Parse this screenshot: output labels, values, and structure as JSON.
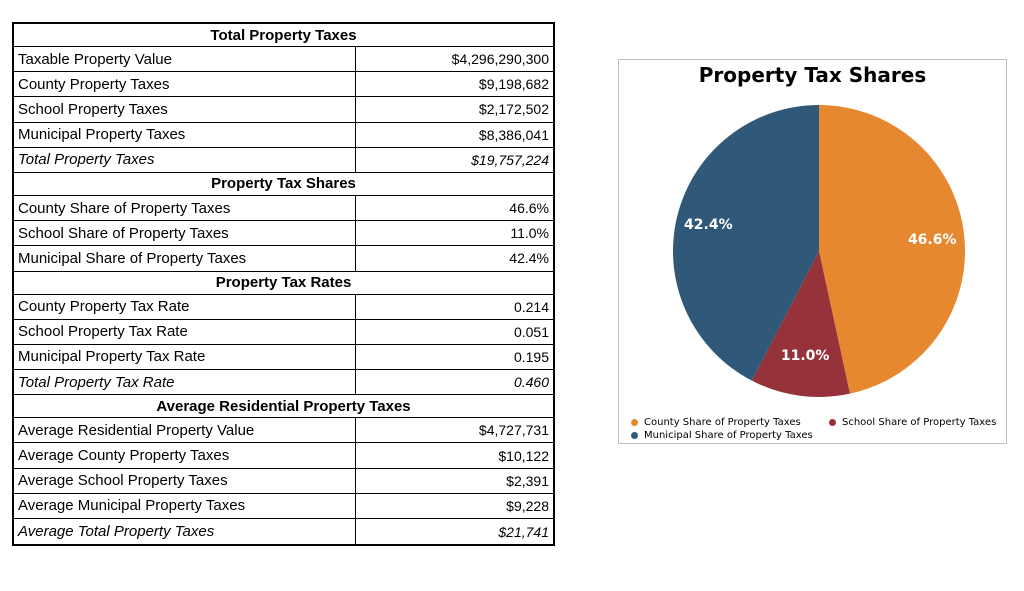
{
  "table": {
    "sections": [
      {
        "title": "Total Property Taxes",
        "rows": [
          {
            "label": "Taxable Property Value",
            "value": "$4,296,290,300",
            "italic": false
          },
          {
            "label": "County Property Taxes",
            "value": "$9,198,682",
            "italic": false
          },
          {
            "label": "School Property Taxes",
            "value": "$2,172,502",
            "italic": false
          },
          {
            "label": "Municipal Property Taxes",
            "value": "$8,386,041",
            "italic": false
          },
          {
            "label": "Total Property Taxes",
            "value": "$19,757,224",
            "italic": true
          }
        ]
      },
      {
        "title": "Property Tax Shares",
        "rows": [
          {
            "label": "County Share of Property Taxes",
            "value": "46.6%",
            "italic": false
          },
          {
            "label": "School Share of Property Taxes",
            "value": "11.0%",
            "italic": false
          },
          {
            "label": "Municipal Share of Property Taxes",
            "value": "42.4%",
            "italic": false
          }
        ]
      },
      {
        "title": "Property Tax Rates",
        "rows": [
          {
            "label": "County Property Tax Rate",
            "value": "0.214",
            "italic": false
          },
          {
            "label": "School Property Tax Rate",
            "value": "0.051",
            "italic": false
          },
          {
            "label": "Municipal Property Tax Rate",
            "value": "0.195",
            "italic": false
          },
          {
            "label": "Total Property Tax Rate",
            "value": "0.460",
            "italic": true
          }
        ]
      },
      {
        "title": "Average Residential Property Taxes",
        "rows": [
          {
            "label": "Average Residential Property Value",
            "value": "$4,727,731",
            "italic": false
          },
          {
            "label": "Average County Property Taxes",
            "value": "$10,122",
            "italic": false
          },
          {
            "label": "Average School Property Taxes",
            "value": "$2,391",
            "italic": false
          },
          {
            "label": "Average Municipal Property Taxes",
            "value": "$9,228",
            "italic": false
          },
          {
            "label": "Average Total Property Taxes",
            "value": "$21,741",
            "italic": true
          }
        ]
      }
    ]
  },
  "chart_data": {
    "type": "pie",
    "title": "Property Tax Shares",
    "legend": "bottom",
    "slices": [
      {
        "name": "County Share of Property Taxes",
        "value": 46.6,
        "label": "46.6%",
        "color": "#E5882F"
      },
      {
        "name": "School Share of Property Taxes",
        "value": 11.0,
        "label": "11.0%",
        "color": "#96323A"
      },
      {
        "name": "Municipal Share of Property Taxes",
        "value": 42.4,
        "label": "42.4%",
        "color": "#2F5879"
      }
    ]
  }
}
